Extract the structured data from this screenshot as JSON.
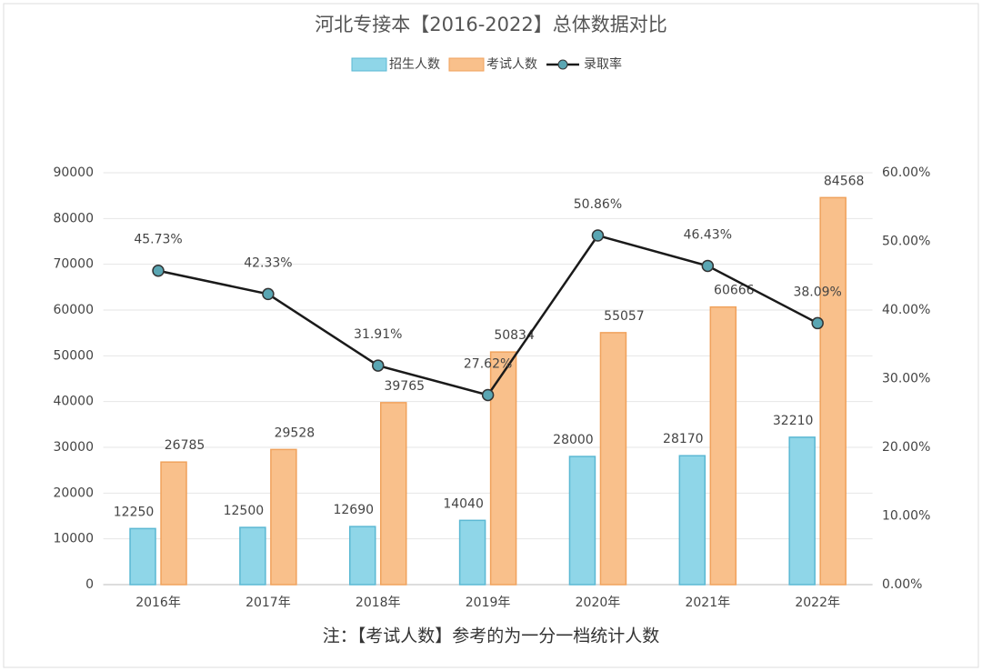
{
  "chart_data": {
    "type": "bar_line",
    "title": "河北专接本【2016-2022】总体数据对比",
    "annotation": "注：【考试人数】参考的为一分一档统计人数",
    "categories": [
      "2016年",
      "2017年",
      "2018年",
      "2019年",
      "2020年",
      "2021年",
      "2022年"
    ],
    "series": [
      {
        "name": "招生人数",
        "type": "bar",
        "color": "#8fd6e8",
        "values": [
          12250,
          12500,
          12690,
          14040,
          28000,
          28170,
          32210
        ]
      },
      {
        "name": "考试人数",
        "type": "bar",
        "color": "#f9c08b",
        "values": [
          26785,
          29528,
          39765,
          50834,
          55057,
          60666,
          84568
        ]
      },
      {
        "name": "录取率",
        "type": "line",
        "axis": "y2",
        "color": "#1a1a1a",
        "values": [
          45.73,
          42.33,
          31.91,
          27.62,
          50.86,
          46.43,
          38.09
        ],
        "value_labels": [
          "45.73%",
          "42.33%",
          "31.91%",
          "27.62%",
          "50.86%",
          "46.43%",
          "38.09%"
        ]
      }
    ],
    "ylim": [
      0,
      90000
    ],
    "yticks": [
      0,
      10000,
      20000,
      30000,
      40000,
      50000,
      60000,
      70000,
      80000,
      90000
    ],
    "y2lim": [
      0,
      60
    ],
    "y2ticks": [
      {
        "value": 0,
        "label": "0.00%"
      },
      {
        "value": 10,
        "label": "10.00%"
      },
      {
        "value": 20,
        "label": "20.00%"
      },
      {
        "value": 30,
        "label": "30.00%"
      },
      {
        "value": 40,
        "label": "40.00%"
      },
      {
        "value": 50,
        "label": "50.00%"
      },
      {
        "value": 60,
        "label": "60.00%"
      }
    ],
    "grid": true,
    "legend": "top"
  }
}
